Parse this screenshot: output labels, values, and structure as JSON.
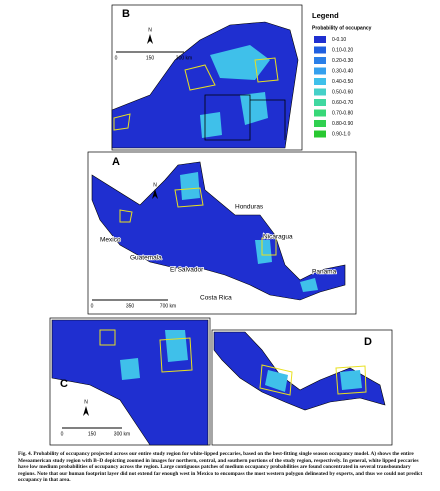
{
  "panel_labels": {
    "a": "A",
    "b": "B",
    "c": "C",
    "d": "D"
  },
  "legend": {
    "title": "Legend",
    "subtitle": "Probability of occupancy",
    "items": [
      {
        "label": "0-0.10",
        "color": "#1f2fd0"
      },
      {
        "label": "0.10-0.20",
        "color": "#1f5fe0"
      },
      {
        "label": "0.20-0.30",
        "color": "#2a7fe8"
      },
      {
        "label": "0.30-0.40",
        "color": "#35a0ee"
      },
      {
        "label": "0.40-0.50",
        "color": "#3fc0ea"
      },
      {
        "label": "0.50-0.60",
        "color": "#45d0c8"
      },
      {
        "label": "0.60-0.70",
        "color": "#40d8a0"
      },
      {
        "label": "0.70-0.80",
        "color": "#38d878"
      },
      {
        "label": "0.80-0.90",
        "color": "#30d050"
      },
      {
        "label": "0.90-1.0",
        "color": "#28c830"
      }
    ]
  },
  "north_label": "N",
  "scale_bars": {
    "b": [
      "0",
      "150",
      "300 km"
    ],
    "a": [
      "0",
      "350",
      "700 km"
    ],
    "c": [
      "0",
      "150",
      "300 km"
    ]
  },
  "countries": [
    "Mexico",
    "Guatemala",
    "Honduras",
    "El Salvador",
    "Nicaragua",
    "Costa Rica",
    "Panama"
  ],
  "caption": {
    "label": "Fig. 4.",
    "text": "Probability of occupancy projected across our entire study region for white-lipped peccaries, based on the best-fitting single season occupancy model. A) shows the entire Mesoamerican study region with B–D depicting zoomed in images for northern, central, and southern portions of the study region, respectively. In general, white lipped peccaries have low medium probabilities of occupancy across the region. Large contiguous patches of medium occupancy probabilities are found concentrated in several transboundary regions. Note that our human footprint layer did not extend far enough west in Mexico to encompass the most western polygon delineated by experts, and thus we could not predict occupancy in that area."
  }
}
